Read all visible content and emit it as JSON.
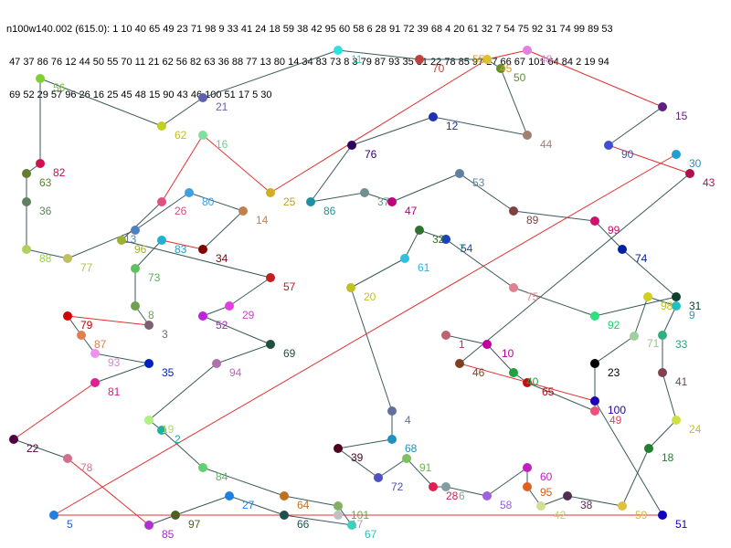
{
  "header_lines": [
    "n100w140.002 (615.0): 1 10 40 65 49 23 71 98 9 33 41 24 18 59 38 42 95 60 58 6 28 91 72 39 68 4 20 61 32 7 54 75 92 31 74 99 89 53",
    " 47 37 86 76 12 44 50 55 70 11 21 62 56 82 63 36 88 77 13 80 14 34 83 73 8 3 79 87 93 35 81 22 78 85 97 27 66 67 101 64 84 2 19 94",
    " 69 52 29 57 96 26 16 25 45 48 15 90 43 46 100 51 17 5 30"
  ],
  "nodes": [
    {
      "id": "1",
      "color": "#c06070",
      "label_color": "#c03050"
    },
    {
      "id": "10",
      "color": "#c000a0",
      "label_color": "#b000a0"
    },
    {
      "id": "40",
      "color": "#20a040",
      "label_color": "#20a040"
    },
    {
      "id": "65",
      "color": "#c01010",
      "label_color": "#a01010"
    },
    {
      "id": "49",
      "color": "#f05080",
      "label_color": "#e04060"
    },
    {
      "id": "23",
      "color": "#000000",
      "label_color": "#000000"
    },
    {
      "id": "71",
      "color": "#a0d0a0",
      "label_color": "#a0c090"
    },
    {
      "id": "98",
      "color": "#d0d020",
      "label_color": "#c0c020"
    },
    {
      "id": "9",
      "color": "#20c0c0",
      "label_color": "#20a0b0"
    },
    {
      "id": "33",
      "color": "#30b080",
      "label_color": "#30a080"
    },
    {
      "id": "41",
      "color": "#804050",
      "label_color": "#804050"
    },
    {
      "id": "24",
      "color": "#d0e040",
      "label_color": "#c0c020"
    },
    {
      "id": "18",
      "color": "#208030",
      "label_color": "#208030"
    },
    {
      "id": "59",
      "color": "#e0c040",
      "label_color": "#e0b040"
    },
    {
      "id": "38",
      "color": "#503050",
      "label_color": "#503050"
    },
    {
      "id": "42",
      "color": "#d0e090",
      "label_color": "#c0d080"
    },
    {
      "id": "95",
      "color": "#e06020",
      "label_color": "#d06020"
    },
    {
      "id": "60",
      "color": "#c020c0",
      "label_color": "#c020c0"
    },
    {
      "id": "58",
      "color": "#a060e0",
      "label_color": "#9060d0"
    },
    {
      "id": "6",
      "color": "#80a0a0",
      "label_color": "#80a0a0"
    },
    {
      "id": "28",
      "color": "#e02050",
      "label_color": "#d02050"
    },
    {
      "id": "91",
      "color": "#80c060",
      "label_color": "#70b050"
    },
    {
      "id": "72",
      "color": "#5050c0",
      "label_color": "#5050c0"
    },
    {
      "id": "39",
      "color": "#500020",
      "label_color": "#500020"
    },
    {
      "id": "68",
      "color": "#2090c0",
      "label_color": "#2090c0"
    },
    {
      "id": "4",
      "color": "#6070a0",
      "label_color": "#6070a0"
    },
    {
      "id": "20",
      "color": "#c0c020",
      "label_color": "#c0c020"
    },
    {
      "id": "61",
      "color": "#30c0e0",
      "label_color": "#30b0e0"
    },
    {
      "id": "32",
      "color": "#307030",
      "label_color": "#307030"
    },
    {
      "id": "7",
      "color": "#20d0a0",
      "label_color": "#20c0a0"
    },
    {
      "id": "54",
      "color": "#2040c0",
      "label_color": "#2040c0"
    },
    {
      "id": "75",
      "color": "#e08090",
      "label_color": "#e08090"
    },
    {
      "id": "92",
      "color": "#30e080",
      "label_color": "#20d070"
    },
    {
      "id": "31",
      "color": "#104030",
      "label_color": "#104030"
    },
    {
      "id": "74",
      "color": "#0020a0",
      "label_color": "#0020a0"
    },
    {
      "id": "99",
      "color": "#d01070",
      "label_color": "#c01070"
    },
    {
      "id": "89",
      "color": "#804040",
      "label_color": "#804040"
    },
    {
      "id": "53",
      "color": "#6080a0",
      "label_color": "#6080a0"
    },
    {
      "id": "47",
      "color": "#c00080",
      "label_color": "#b00080"
    },
    {
      "id": "37",
      "color": "#709090",
      "label_color": "#709090"
    },
    {
      "id": "86",
      "color": "#2090a0",
      "label_color": "#2090a0"
    },
    {
      "id": "76",
      "color": "#300060",
      "label_color": "#300060"
    },
    {
      "id": "12",
      "color": "#2030b0",
      "label_color": "#2030b0"
    },
    {
      "id": "44",
      "color": "#a08070",
      "label_color": "#a08070"
    },
    {
      "id": "50",
      "color": "#609030",
      "label_color": "#609030"
    },
    {
      "id": "55",
      "color": "#e0b030",
      "label_color": "#d0a030"
    },
    {
      "id": "70",
      "color": "#c04040",
      "label_color": "#c04040"
    },
    {
      "id": "11",
      "color": "#30e0e0",
      "label_color": "#30d0d0"
    },
    {
      "id": "21",
      "color": "#6060b0",
      "label_color": "#6060b0"
    },
    {
      "id": "62",
      "color": "#c0d020",
      "label_color": "#c0c020"
    },
    {
      "id": "56",
      "color": "#80d030",
      "label_color": "#70c030"
    },
    {
      "id": "82",
      "color": "#d01050",
      "label_color": "#c01050"
    },
    {
      "id": "63",
      "color": "#608030",
      "label_color": "#608030"
    },
    {
      "id": "36",
      "color": "#608060",
      "label_color": "#608060"
    },
    {
      "id": "88",
      "color": "#b0d060",
      "label_color": "#a0d050"
    },
    {
      "id": "77",
      "color": "#c0c060",
      "label_color": "#b0c050"
    },
    {
      "id": "13",
      "color": "#5080c0",
      "label_color": "#5080c0"
    },
    {
      "id": "80",
      "color": "#40a0e0",
      "label_color": "#40a0e0"
    },
    {
      "id": "14",
      "color": "#c08050",
      "label_color": "#c08050"
    },
    {
      "id": "34",
      "color": "#800000",
      "label_color": "#800000"
    },
    {
      "id": "83",
      "color": "#20b0d0",
      "label_color": "#20a0c0"
    },
    {
      "id": "73",
      "color": "#60c060",
      "label_color": "#50b050"
    },
    {
      "id": "8",
      "color": "#70a050",
      "label_color": "#70a050"
    },
    {
      "id": "3",
      "color": "#806070",
      "label_color": "#806070"
    },
    {
      "id": "79",
      "color": "#d00000",
      "label_color": "#c00000"
    },
    {
      "id": "87",
      "color": "#e08050",
      "label_color": "#d08050"
    },
    {
      "id": "93",
      "color": "#f090f0",
      "label_color": "#e080e0"
    },
    {
      "id": "35",
      "color": "#0020c0",
      "label_color": "#0020c0"
    },
    {
      "id": "81",
      "color": "#e02090",
      "label_color": "#d02080"
    },
    {
      "id": "22",
      "color": "#500040",
      "label_color": "#500040"
    },
    {
      "id": "78",
      "color": "#d07090",
      "label_color": "#d07090"
    },
    {
      "id": "85",
      "color": "#b030d0",
      "label_color": "#a030c0"
    },
    {
      "id": "97",
      "color": "#506020",
      "label_color": "#506020"
    },
    {
      "id": "27",
      "color": "#2080e0",
      "label_color": "#2080e0"
    },
    {
      "id": "66",
      "color": "#205050",
      "label_color": "#205050"
    },
    {
      "id": "67",
      "color": "#40d0c0",
      "label_color": "#30c0b0"
    },
    {
      "id": "101",
      "color": "#80b060",
      "label_color": "#70a050"
    },
    {
      "id": "64",
      "color": "#c07020",
      "label_color": "#c07020"
    },
    {
      "id": "84",
      "color": "#60d070",
      "label_color": "#50c060"
    },
    {
      "id": "2",
      "color": "#20b0a0",
      "label_color": "#20a0a0"
    },
    {
      "id": "19",
      "color": "#b0f080",
      "label_color": "#a0e070"
    },
    {
      "id": "94",
      "color": "#b070b0",
      "label_color": "#b070b0"
    },
    {
      "id": "69",
      "color": "#205040",
      "label_color": "#205040"
    },
    {
      "id": "52",
      "color": "#c020e0",
      "label_color": "#b020d0"
    },
    {
      "id": "29",
      "color": "#e040e0",
      "label_color": "#d040d0"
    },
    {
      "id": "57",
      "color": "#c02020",
      "label_color": "#b02020"
    },
    {
      "id": "96",
      "color": "#a0b030",
      "label_color": "#a0b030"
    },
    {
      "id": "26",
      "color": "#e05080",
      "label_color": "#d05080"
    },
    {
      "id": "16",
      "color": "#80e0a0",
      "label_color": "#70d090"
    },
    {
      "id": "25",
      "color": "#d0b020",
      "label_color": "#c0a020"
    },
    {
      "id": "45",
      "color": "#e0c030",
      "label_color": "#d0a030"
    },
    {
      "id": "48",
      "color": "#e080e0",
      "label_color": "#d080d0"
    },
    {
      "id": "15",
      "color": "#602080",
      "label_color": "#602080"
    },
    {
      "id": "90",
      "color": "#4050d0",
      "label_color": "#4050c0"
    },
    {
      "id": "43",
      "color": "#b01050",
      "label_color": "#b01050"
    },
    {
      "id": "46",
      "color": "#804020",
      "label_color": "#804020"
    },
    {
      "id": "100",
      "color": "#2000b0",
      "label_color": "#2000b0"
    },
    {
      "id": "51",
      "color": "#1000c0",
      "label_color": "#1000c0"
    },
    {
      "id": "17",
      "color": "#c0c0c0",
      "label_color": "#a0a0a0"
    },
    {
      "id": "5",
      "color": "#2080e0",
      "label_color": "#2060d0"
    },
    {
      "id": "30",
      "color": "#20a0d0",
      "label_color": "#2090c0"
    }
  ],
  "tour": [
    "1",
    "10",
    "40",
    "65",
    "49",
    "23",
    "71",
    "98",
    "9",
    "33",
    "41",
    "24",
    "18",
    "59",
    "38",
    "42",
    "95",
    "60",
    "58",
    "6",
    "28",
    "91",
    "72",
    "39",
    "68",
    "4",
    "20",
    "61",
    "32",
    "7",
    "54",
    "75",
    "92",
    "31",
    "74",
    "99",
    "89",
    "53",
    "47",
    "37",
    "86",
    "76",
    "12",
    "44",
    "50",
    "55",
    "70",
    "11",
    "21",
    "62",
    "56",
    "82",
    "63",
    "36",
    "88",
    "77",
    "13",
    "80",
    "14",
    "34",
    "83",
    "73",
    "8",
    "3",
    "79",
    "87",
    "93",
    "35",
    "81",
    "22",
    "78",
    "85",
    "97",
    "27",
    "66",
    "67",
    "101",
    "64",
    "84",
    "2",
    "19",
    "94",
    "69",
    "52",
    "29",
    "57",
    "96",
    "26",
    "16",
    "25",
    "45",
    "48",
    "15",
    "90",
    "43",
    "46",
    "100",
    "51",
    "17",
    "5",
    "30"
  ],
  "edge_colors": {
    "path": "#3a5a5a",
    "red": "#e03030"
  },
  "red_edges": [
    [
      "1",
      "30"
    ],
    [
      "5",
      "30"
    ],
    [
      "43",
      "10"
    ],
    [
      "46",
      "100"
    ],
    [
      "49",
      "51"
    ],
    [
      "34",
      "83"
    ],
    [
      "25",
      "45"
    ],
    [
      "16",
      "25"
    ],
    [
      "26",
      "16"
    ],
    [
      "45",
      "48"
    ],
    [
      "48",
      "15"
    ],
    [
      "90",
      "43"
    ],
    [
      "79",
      "3"
    ],
    [
      "22",
      "81"
    ],
    [
      "78",
      "85"
    ],
    [
      "97",
      "5"
    ],
    [
      "51",
      "17"
    ],
    [
      "17",
      "5"
    ]
  ]
}
